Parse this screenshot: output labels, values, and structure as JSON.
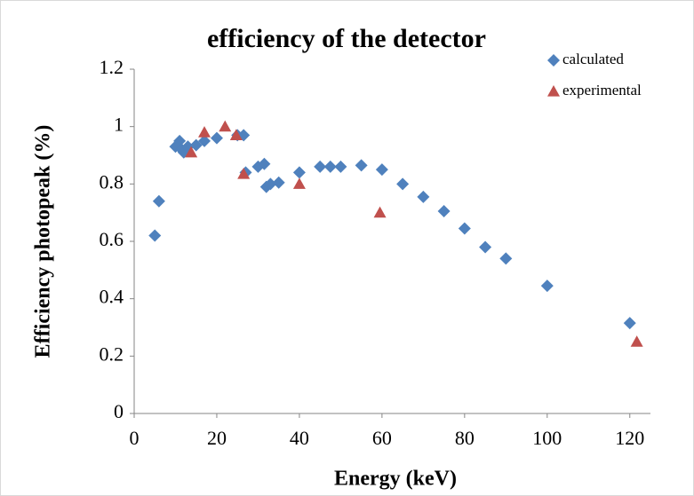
{
  "chart_data": {
    "type": "scatter",
    "title": "efficiency of the detector",
    "x_label": "Energy (keV)",
    "y_label": "Efficiency photopeak (%)",
    "xlim": [
      0,
      125
    ],
    "xticks": [
      0,
      20,
      40,
      60,
      80,
      100,
      120
    ],
    "ylim": [
      0,
      1.2
    ],
    "yticks": [
      0,
      0.2,
      0.4,
      0.6,
      0.8,
      1,
      1.2
    ],
    "grid": false,
    "legend": "top-right",
    "series": [
      {
        "name": "calculated",
        "color": "#4f81bd",
        "marker": "diamond",
        "x": [
          5,
          6,
          10,
          11,
          11.5,
          12,
          13,
          15,
          17,
          20,
          25,
          26.5,
          27,
          30,
          31.5,
          32,
          33,
          35,
          40,
          45,
          47.5,
          50,
          55,
          60,
          65,
          70,
          75,
          80,
          85,
          90,
          100,
          120
        ],
        "values": [
          0.62,
          0.74,
          0.93,
          0.95,
          0.92,
          0.91,
          0.93,
          0.935,
          0.95,
          0.96,
          0.97,
          0.97,
          0.84,
          0.86,
          0.87,
          0.79,
          0.8,
          0.805,
          0.84,
          0.86,
          0.86,
          0.86,
          0.865,
          0.85,
          0.8,
          0.755,
          0.705,
          0.645,
          0.58,
          0.54,
          0.445,
          0.315
        ]
      },
      {
        "name": "experimental",
        "color": "#c0504d",
        "marker": "triangle",
        "x": [
          13.8,
          17,
          22,
          24.7,
          26.5,
          40,
          59.5,
          121.7
        ],
        "values": [
          0.91,
          0.98,
          1.0,
          0.97,
          0.835,
          0.8,
          0.7,
          0.25
        ]
      }
    ]
  }
}
